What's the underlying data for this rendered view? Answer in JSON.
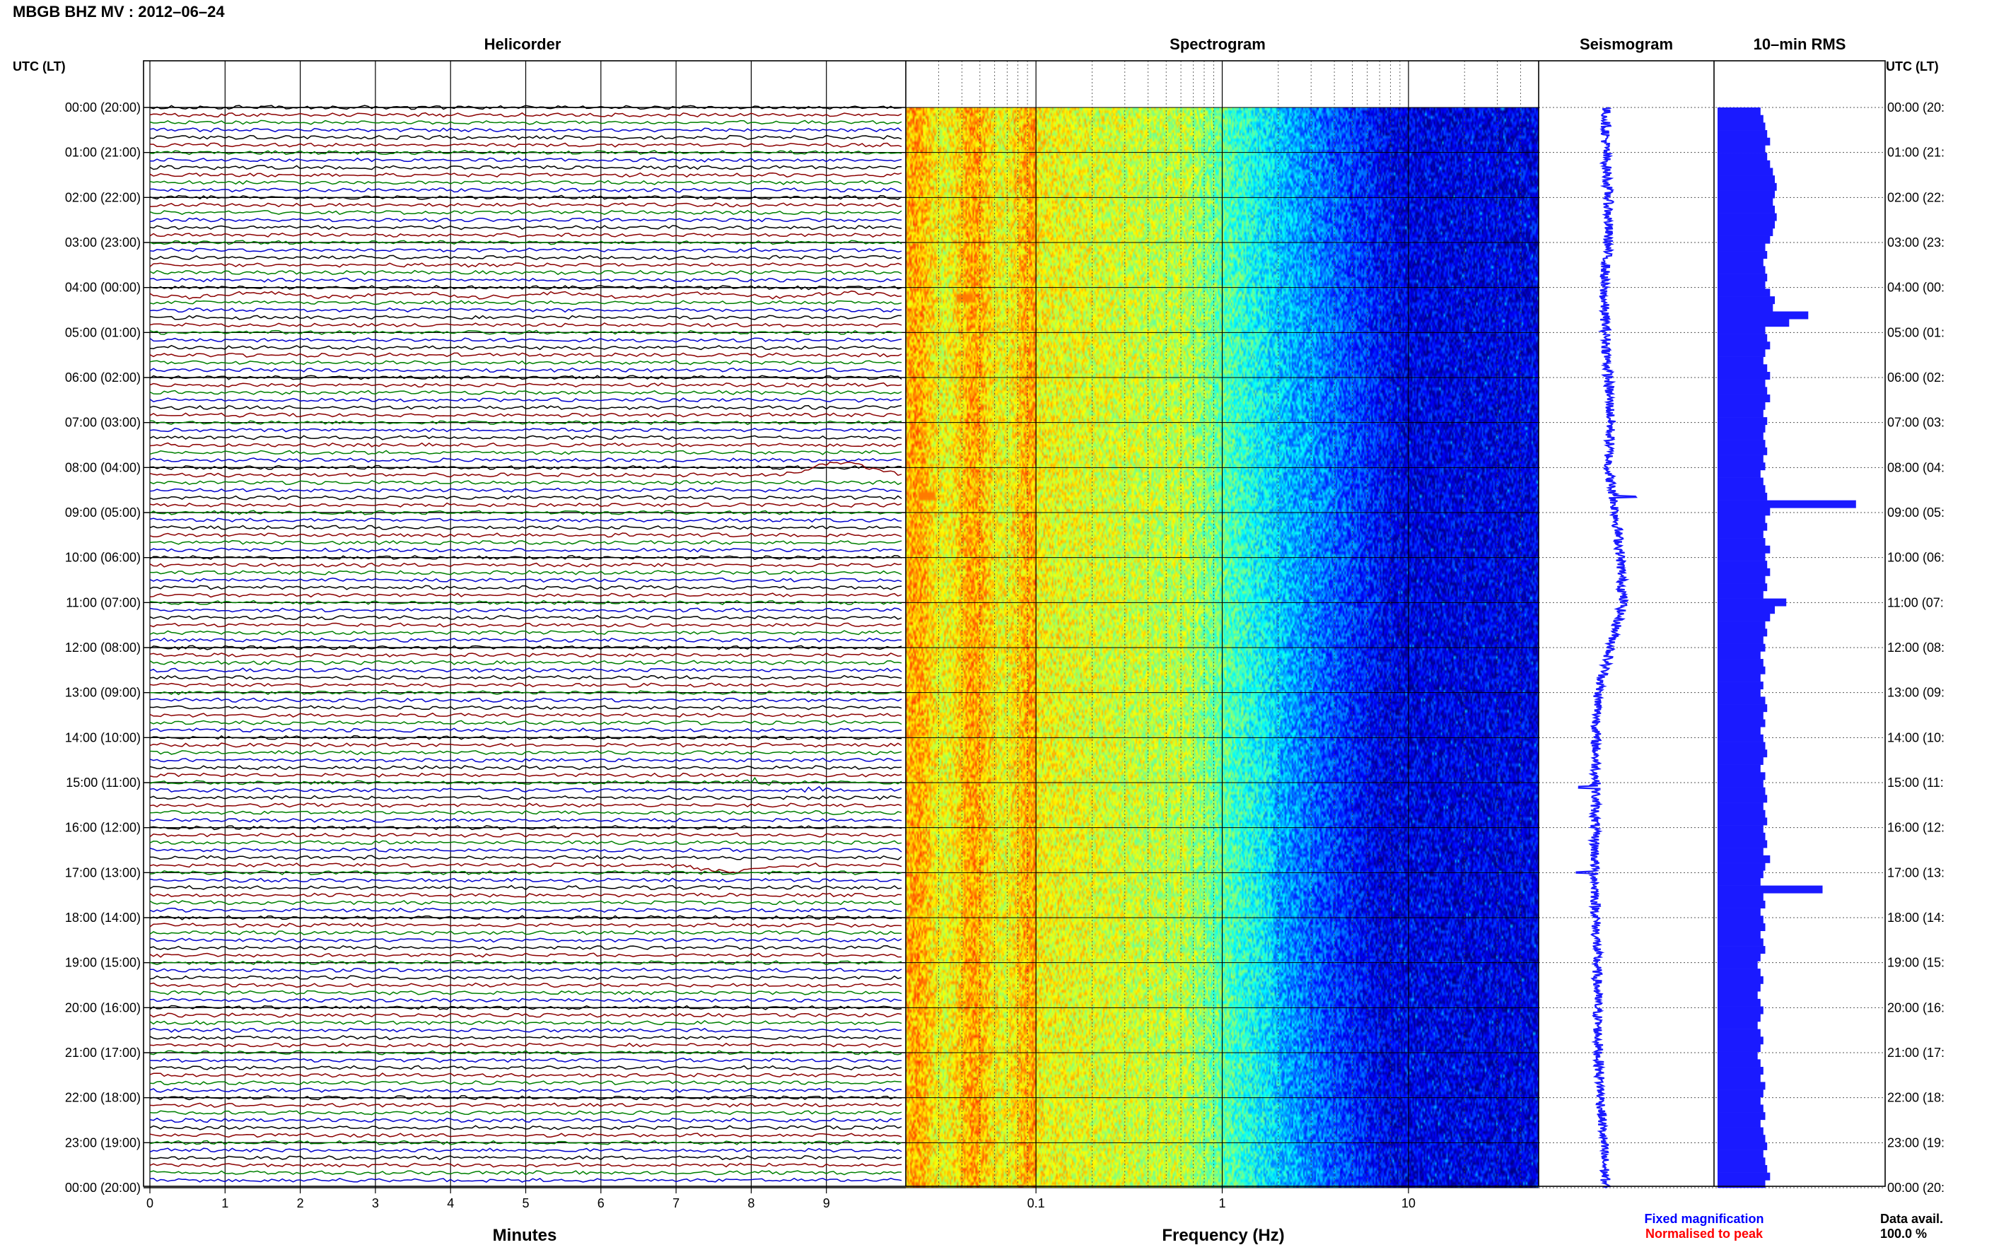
{
  "header": {
    "title": "MBGB BHZ MV : 2012–06–24",
    "left_axis_label": "UTC (LT)",
    "right_axis_label": "UTC (LT)"
  },
  "panels": {
    "helicorder": "Helicorder",
    "spectrogram": "Spectrogram",
    "seismogram": "Seismogram",
    "rms": "10–min RMS"
  },
  "axes": {
    "helicorder_xlabel": "Minutes",
    "spectrogram_xlabel": "Frequency (Hz)"
  },
  "footer": {
    "fixed_magnification": "Fixed magnification",
    "normalised_to_peak": "Normalised to peak",
    "data_avail_label": "Data avail.",
    "data_avail_value": "100.0 %"
  },
  "colors": {
    "fixed_magnification": "#0000ff",
    "normalised_to_peak": "#ff0000",
    "trace_cycle": [
      "#000000",
      "#8b0000",
      "#008000",
      "#0000cd"
    ],
    "seismogram": "#1a1aff",
    "rms_bars": "#1a1aff",
    "spectrogram_colormap": "jet"
  },
  "chart_data": {
    "type": "seismic-summary",
    "time_labels": [
      "00:00 (20:00)",
      "01:00 (21:00)",
      "02:00 (22:00)",
      "03:00 (23:00)",
      "04:00 (00:00)",
      "05:00 (01:00)",
      "06:00 (02:00)",
      "07:00 (03:00)",
      "08:00 (04:00)",
      "09:00 (05:00)",
      "10:00 (06:00)",
      "11:00 (07:00)",
      "12:00 (08:00)",
      "13:00 (09:00)",
      "14:00 (10:00)",
      "15:00 (11:00)",
      "16:00 (12:00)",
      "17:00 (13:00)",
      "18:00 (14:00)",
      "19:00 (15:00)",
      "20:00 (16:00)",
      "21:00 (17:00)",
      "22:00 (18:00)",
      "23:00 (19:00)",
      "00:00 (20:00)"
    ],
    "helicorder": {
      "x_ticks": [
        0,
        1,
        2,
        3,
        4,
        5,
        6,
        7,
        8,
        9
      ],
      "xlim": [
        0,
        10
      ],
      "lines_per_hour": 6,
      "events": [
        {
          "hour": 8.2,
          "minute": 9.2,
          "amp": 1.8,
          "kind": "bump"
        },
        {
          "hour": 15.0,
          "minute": 8.1,
          "amp": 1.4,
          "kind": "burst"
        },
        {
          "hour": 15.2,
          "minute": 8.9,
          "amp": 0.8,
          "kind": "burst"
        },
        {
          "hour": 16.8,
          "minute": 7.7,
          "amp": 1.2,
          "kind": "sag"
        },
        {
          "hour": 4.1,
          "minute": 5.0,
          "amp": 1.0,
          "kind": "wavy"
        }
      ]
    },
    "spectrogram": {
      "x_scale": "log",
      "xlim": [
        0.02,
        50
      ],
      "x_tick_labels": [
        "0.1",
        "1",
        "10"
      ],
      "x_tick_values": [
        0.1,
        1,
        10
      ],
      "colormap": "jet",
      "hot_spots": [
        {
          "hour": 4.2,
          "freq": 0.04
        },
        {
          "hour": 8.6,
          "freq": 0.025
        }
      ]
    },
    "seismogram": {
      "hours": [
        0,
        1,
        2,
        3,
        4,
        5,
        6,
        7,
        8,
        9,
        10,
        11,
        12,
        13,
        14,
        15,
        16,
        17,
        18,
        19,
        20,
        21,
        22,
        23,
        24
      ],
      "offset": [
        0.5,
        0.5,
        0.55,
        0.55,
        0.45,
        0.5,
        0.55,
        0.6,
        0.55,
        0.7,
        0.8,
        0.85,
        0.6,
        0.35,
        0.3,
        0.3,
        0.28,
        0.28,
        0.3,
        0.32,
        0.33,
        0.35,
        0.4,
        0.45,
        0.5
      ]
    },
    "rms": {
      "interval_minutes": 10,
      "values": [
        0.45,
        0.48,
        0.5,
        0.52,
        0.55,
        0.5,
        0.52,
        0.55,
        0.58,
        0.6,
        0.62,
        0.6,
        0.58,
        0.6,
        0.62,
        0.6,
        0.58,
        0.55,
        0.5,
        0.52,
        0.48,
        0.5,
        0.52,
        0.5,
        0.55,
        0.6,
        0.58,
        0.95,
        0.75,
        0.5,
        0.52,
        0.55,
        0.5,
        0.48,
        0.52,
        0.55,
        0.5,
        0.52,
        0.55,
        0.5,
        0.48,
        0.52,
        0.5,
        0.48,
        0.5,
        0.52,
        0.48,
        0.5,
        0.45,
        0.48,
        0.5,
        0.52,
        1.45,
        0.55,
        0.5,
        0.52,
        0.48,
        0.5,
        0.55,
        0.5,
        0.52,
        0.55,
        0.5,
        0.52,
        0.48,
        0.72,
        0.6,
        0.55,
        0.5,
        0.52,
        0.48,
        0.5,
        0.45,
        0.48,
        0.5,
        0.45,
        0.48,
        0.45,
        0.5,
        0.52,
        0.48,
        0.5,
        0.45,
        0.48,
        0.5,
        0.52,
        0.48,
        0.45,
        0.5,
        0.48,
        0.5,
        0.52,
        0.48,
        0.5,
        0.52,
        0.48,
        0.5,
        0.52,
        0.48,
        0.55,
        0.5,
        0.48,
        0.45,
        1.1,
        0.48,
        0.5,
        0.45,
        0.48,
        0.5,
        0.45,
        0.48,
        0.5,
        0.45,
        0.42,
        0.45,
        0.48,
        0.45,
        0.42,
        0.45,
        0.48,
        0.45,
        0.42,
        0.45,
        0.48,
        0.45,
        0.42,
        0.45,
        0.48,
        0.45,
        0.5,
        0.48,
        0.45,
        0.48,
        0.5,
        0.45,
        0.48,
        0.5,
        0.52,
        0.48,
        0.5,
        0.52,
        0.55,
        0.5
      ]
    }
  }
}
